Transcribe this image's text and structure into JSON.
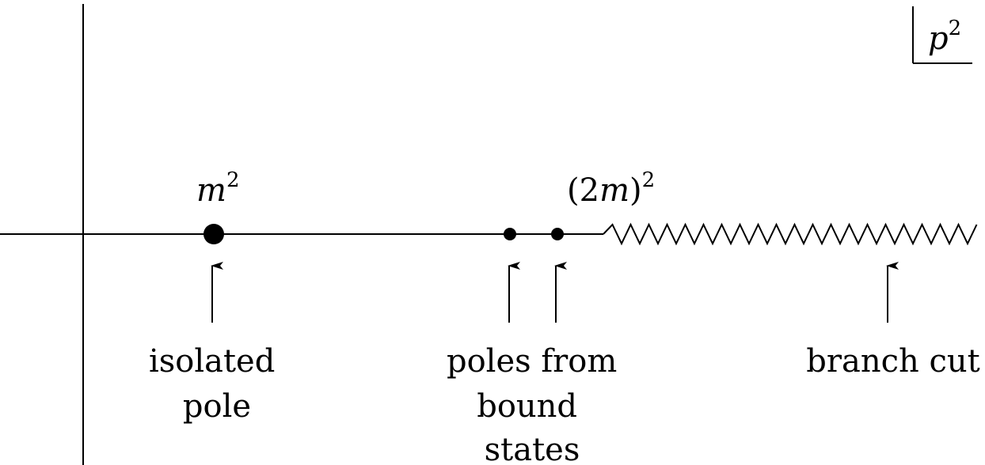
{
  "variable": {
    "base": "p",
    "exp": "2"
  },
  "points": {
    "isolated": {
      "label_base": "m",
      "label_exp": "2",
      "caption": [
        "isolated",
        "pole"
      ]
    },
    "bound_states": {
      "caption": [
        "poles from",
        "bound",
        "states"
      ]
    },
    "threshold": {
      "label_open": "(",
      "label_base": "2m",
      "label_close": ")",
      "label_exp": "2"
    },
    "branch": {
      "caption": [
        "branch cut"
      ]
    }
  }
}
